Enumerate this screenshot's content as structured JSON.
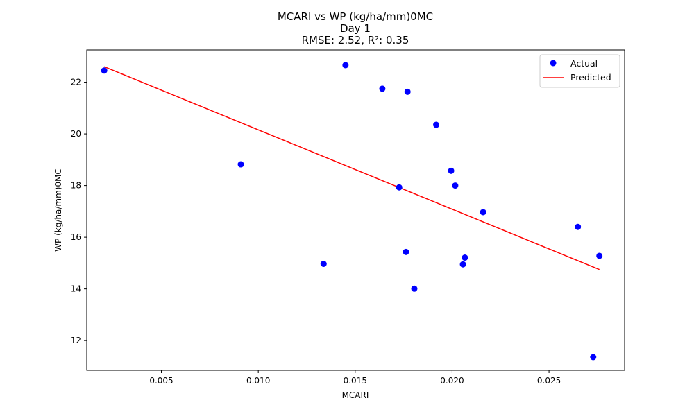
{
  "chart_data": {
    "type": "scatter",
    "title": [
      "MCARI vs WP (kg/ha/mm)0MC",
      "Day 1",
      "RMSE: 2.52, R²: 0.35"
    ],
    "xlabel": "MCARI",
    "ylabel": "WP (kg/ha/mm)0MC",
    "xlim": [
      0.00115,
      0.0289
    ],
    "ylim": [
      10.85,
      23.25
    ],
    "xticks": [
      0.005,
      0.01,
      0.015,
      0.02,
      0.025
    ],
    "xtick_labels": [
      "0.005",
      "0.010",
      "0.015",
      "0.020",
      "0.025"
    ],
    "yticks": [
      12,
      14,
      16,
      18,
      20,
      22
    ],
    "ytick_labels": [
      "12",
      "14",
      "16",
      "18",
      "20",
      "22"
    ],
    "grid": false,
    "legend_position": "top-right",
    "series": [
      {
        "name": "Actual",
        "kind": "scatter",
        "color": "#0000ff",
        "points": [
          {
            "x": 0.00205,
            "y": 22.45
          },
          {
            "x": 0.0091,
            "y": 18.82
          },
          {
            "x": 0.01337,
            "y": 14.97
          },
          {
            "x": 0.0145,
            "y": 22.66
          },
          {
            "x": 0.0164,
            "y": 21.75
          },
          {
            "x": 0.01727,
            "y": 17.93
          },
          {
            "x": 0.01762,
            "y": 15.43
          },
          {
            "x": 0.0177,
            "y": 21.63
          },
          {
            "x": 0.01805,
            "y": 14.01
          },
          {
            "x": 0.01918,
            "y": 20.35
          },
          {
            "x": 0.01995,
            "y": 18.57
          },
          {
            "x": 0.02016,
            "y": 18.0
          },
          {
            "x": 0.02056,
            "y": 14.95
          },
          {
            "x": 0.02066,
            "y": 15.21
          },
          {
            "x": 0.0216,
            "y": 16.97
          },
          {
            "x": 0.02649,
            "y": 16.4
          },
          {
            "x": 0.02728,
            "y": 11.36
          },
          {
            "x": 0.0276,
            "y": 15.28
          }
        ]
      },
      {
        "name": "Predicted",
        "kind": "line",
        "color": "#ff0000",
        "points": [
          {
            "x": 0.00205,
            "y": 22.6
          },
          {
            "x": 0.0276,
            "y": 14.75
          }
        ]
      }
    ]
  }
}
